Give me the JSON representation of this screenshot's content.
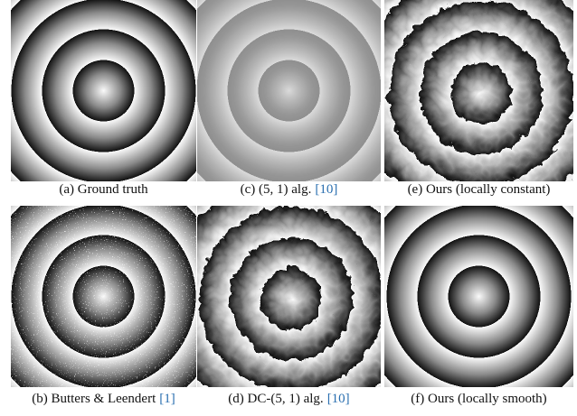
{
  "panels": [
    {
      "caption": "(a) Ground truth",
      "ref": null
    },
    {
      "caption": "(c) (5, 1) alg.",
      "ref": "[10]"
    },
    {
      "caption": "(e) Ours (locally constant)",
      "ref": null
    },
    {
      "caption": "(b) Butters & Leendert",
      "ref": "[1]"
    },
    {
      "caption": "(d) DC-(5, 1) alg.",
      "ref": "[10]"
    },
    {
      "caption": "(f) Ours (locally smooth)",
      "ref": null
    }
  ]
}
